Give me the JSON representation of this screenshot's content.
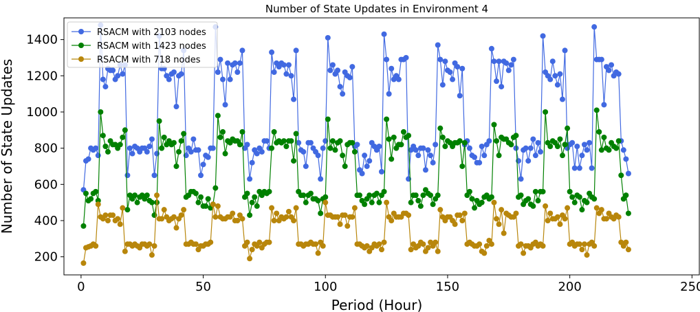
{
  "chart_data": {
    "type": "line",
    "title": "Number of State Updates in Environment 4",
    "xlabel": "Period (Hour)",
    "ylabel": "Number of State Updates",
    "xlim": [
      -7,
      253
    ],
    "ylim": [
      100,
      1520
    ],
    "xticks": [
      0,
      50,
      100,
      150,
      200,
      250
    ],
    "yticks": [
      200,
      400,
      600,
      800,
      1000,
      1200,
      1400
    ],
    "grid": false,
    "legend_position": "top-left",
    "x_start": 1,
    "x_step": 1,
    "series": [
      {
        "name": "RSACM with 2103 nodes",
        "color": "#4169e1",
        "values": [
          570,
          730,
          740,
          800,
          790,
          800,
          760,
          1480,
          1180,
          1140,
          1240,
          1230,
          1230,
          1180,
          1200,
          1260,
          1210,
          1260,
          650,
          800,
          770,
          810,
          800,
          780,
          800,
          800,
          780,
          810,
          850,
          650,
          770,
          1420,
          1240,
          1240,
          1200,
          1180,
          1210,
          1220,
          1030,
          1200,
          1210,
          1340,
          760,
          800,
          780,
          850,
          790,
          790,
          650,
          710,
          760,
          750,
          800,
          800,
          1470,
          1220,
          1290,
          1180,
          1040,
          1270,
          1180,
          1260,
          1270,
          1220,
          1270,
          1340,
          800,
          820,
          630,
          720,
          790,
          770,
          800,
          780,
          840,
          840,
          800,
          1330,
          1220,
          1270,
          1250,
          1270,
          1260,
          1210,
          1260,
          1200,
          1070,
          1340,
          830,
          790,
          780,
          700,
          830,
          830,
          800,
          780,
          760,
          630,
          800,
          840,
          1410,
          1230,
          1260,
          1210,
          1230,
          1140,
          1100,
          1220,
          1200,
          1190,
          1250,
          810,
          820,
          680,
          660,
          760,
          700,
          730,
          830,
          810,
          790,
          810,
          670,
          1430,
          1290,
          1100,
          1240,
          1180,
          1200,
          1180,
          1290,
          1290,
          1300,
          630,
          790,
          810,
          790,
          760,
          800,
          800,
          680,
          790,
          760,
          720,
          820,
          1370,
          1290,
          1150,
          1280,
          1230,
          1220,
          1180,
          1270,
          1250,
          1090,
          1240,
          820,
          840,
          800,
          760,
          750,
          720,
          720,
          810,
          760,
          820,
          840,
          1350,
          1280,
          1170,
          1280,
          1140,
          1280,
          1270,
          1230,
          1260,
          1290,
          800,
          730,
          630,
          790,
          800,
          730,
          800,
          850,
          760,
          830,
          780,
          1420,
          1220,
          1200,
          1180,
          1280,
          1200,
          1150,
          1210,
          1070,
          1340,
          800,
          820,
          830,
          690,
          810,
          690,
          760,
          820,
          790,
          830,
          690,
          1470,
          1290,
          1290,
          1290,
          1040,
          1250,
          1230,
          1260,
          1200,
          1220,
          1210,
          840,
          790,
          740,
          660
        ]
      },
      {
        "name": "RSACM with 1423 nodes",
        "color": "#008000",
        "values": [
          370,
          550,
          510,
          520,
          550,
          560,
          510,
          1000,
          870,
          810,
          780,
          840,
          820,
          820,
          800,
          820,
          860,
          900,
          460,
          540,
          520,
          540,
          500,
          530,
          540,
          520,
          540,
          510,
          500,
          430,
          500,
          950,
          800,
          860,
          820,
          840,
          820,
          830,
          700,
          780,
          840,
          880,
          530,
          540,
          560,
          560,
          550,
          500,
          530,
          480,
          480,
          520,
          470,
          490,
          580,
          980,
          860,
          890,
          770,
          840,
          830,
          850,
          840,
          840,
          820,
          890,
          530,
          550,
          430,
          500,
          530,
          480,
          560,
          540,
          560,
          550,
          560,
          800,
          890,
          830,
          840,
          830,
          840,
          810,
          840,
          840,
          730,
          880,
          560,
          540,
          540,
          500,
          540,
          550,
          520,
          520,
          510,
          440,
          520,
          530,
          960,
          800,
          840,
          790,
          830,
          840,
          760,
          700,
          820,
          830,
          830,
          780,
          540,
          540,
          510,
          490,
          520,
          540,
          500,
          540,
          550,
          500,
          540,
          560,
          960,
          850,
          740,
          860,
          800,
          820,
          820,
          890,
          860,
          870,
          500,
          540,
          540,
          510,
          480,
          540,
          570,
          550,
          540,
          490,
          520,
          540,
          910,
          860,
          810,
          840,
          830,
          810,
          830,
          830,
          840,
          700,
          830,
          540,
          560,
          520,
          470,
          510,
          490,
          500,
          530,
          540,
          520,
          530,
          930,
          840,
          760,
          860,
          850,
          850,
          830,
          820,
          860,
          870,
          530,
          540,
          490,
          510,
          520,
          490,
          480,
          560,
          510,
          560,
          560,
          1000,
          830,
          810,
          840,
          830,
          810,
          850,
          760,
          820,
          910,
          560,
          530,
          500,
          540,
          530,
          460,
          510,
          500,
          550,
          530,
          520,
          1010,
          890,
          790,
          860,
          800,
          790,
          830,
          810,
          800,
          840,
          650,
          520,
          540,
          440
        ]
      },
      {
        "name": "RSACM with 718 nodes",
        "color": "#b8860b",
        "values": [
          165,
          250,
          255,
          260,
          270,
          260,
          490,
          420,
          410,
          430,
          400,
          430,
          430,
          400,
          410,
          380,
          470,
          230,
          270,
          270,
          260,
          270,
          260,
          250,
          270,
          270,
          260,
          270,
          210,
          260,
          540,
          410,
          410,
          460,
          420,
          400,
          410,
          420,
          360,
          410,
          430,
          460,
          270,
          270,
          280,
          270,
          270,
          240,
          260,
          260,
          270,
          270,
          280,
          490,
          420,
          480,
          420,
          410,
          410,
          420,
          420,
          440,
          400,
          400,
          430,
          410,
          260,
          280,
          190,
          240,
          270,
          260,
          280,
          250,
          270,
          280,
          280,
          470,
          400,
          440,
          400,
          420,
          410,
          420,
          450,
          420,
          400,
          470,
          270,
          270,
          260,
          270,
          270,
          280,
          270,
          270,
          220,
          280,
          260,
          500,
          430,
          430,
          420,
          420,
          420,
          380,
          430,
          430,
          370,
          420,
          420,
          470,
          270,
          270,
          260,
          250,
          260,
          230,
          250,
          270,
          260,
          270,
          240,
          280,
          500,
          420,
          400,
          440,
          420,
          420,
          420,
          440,
          440,
          430,
          240,
          270,
          250,
          260,
          280,
          270,
          230,
          250,
          280,
          260,
          280,
          230,
          460,
          420,
          400,
          420,
          420,
          400,
          380,
          430,
          430,
          400,
          440,
          270,
          280,
          270,
          260,
          260,
          270,
          230,
          220,
          260,
          290,
          270,
          500,
          410,
          380,
          460,
          330,
          440,
          430,
          420,
          420,
          440,
          260,
          270,
          220,
          260,
          260,
          250,
          270,
          280,
          260,
          270,
          260,
          480,
          400,
          440,
          410,
          410,
          420,
          380,
          430,
          410,
          470,
          270,
          280,
          260,
          270,
          270,
          240,
          270,
          210,
          270,
          280,
          260,
          470,
          440,
          460,
          410,
          410,
          440,
          420,
          410,
          430,
          420,
          280,
          260,
          280,
          240
        ]
      }
    ]
  }
}
